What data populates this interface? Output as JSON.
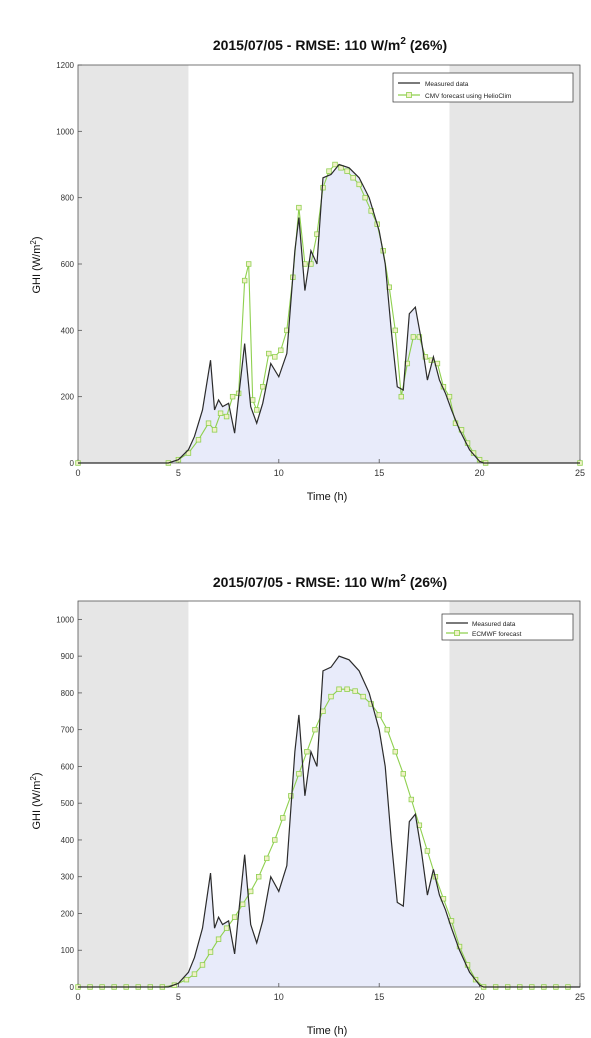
{
  "colors": {
    "measured": "#2b2b2b",
    "forecast": "#8fd04f",
    "night": "#e6e6e6",
    "fill": "#e8ebfa"
  },
  "chart_data": [
    {
      "type": "line",
      "title": "2015/07/05 - RMSE: 110 W/m² (26%)",
      "title_parts": {
        "pre": "2015/07/05 - RMSE: 110 W/m",
        "sup": "2",
        "post": " (26%)"
      },
      "xlabel": "Time (h)",
      "ylabel": {
        "pre": "GHI (W/m",
        "sup": "2",
        "post": ")"
      },
      "xlim": [
        0,
        25
      ],
      "ylim": [
        0,
        1200
      ],
      "xticks": [
        0,
        5,
        10,
        15,
        20,
        25
      ],
      "yticks": [
        0,
        200,
        400,
        600,
        800,
        1000,
        1200
      ],
      "night_shading": [
        [
          0,
          5.5
        ],
        [
          18.5,
          25
        ]
      ],
      "legend_position": "top-right",
      "series": [
        {
          "name": "Measured data",
          "x": [
            0,
            4.5,
            5,
            5.5,
            5.8,
            6.2,
            6.6,
            6.8,
            7.0,
            7.2,
            7.5,
            7.8,
            8.0,
            8.3,
            8.6,
            8.9,
            9.2,
            9.6,
            10.0,
            10.4,
            10.8,
            11.0,
            11.3,
            11.6,
            11.9,
            12.2,
            12.6,
            13.0,
            13.5,
            14.0,
            14.5,
            15.0,
            15.3,
            15.6,
            15.9,
            16.2,
            16.5,
            16.8,
            17.1,
            17.4,
            17.7,
            18.0,
            18.3,
            18.6,
            19.0,
            19.5,
            20.0,
            20.2,
            25
          ],
          "y": [
            0,
            0,
            10,
            40,
            80,
            160,
            310,
            160,
            190,
            170,
            180,
            90,
            200,
            360,
            170,
            120,
            180,
            300,
            260,
            330,
            640,
            740,
            520,
            640,
            600,
            860,
            870,
            900,
            890,
            860,
            800,
            700,
            600,
            400,
            230,
            220,
            450,
            470,
            370,
            250,
            320,
            250,
            210,
            160,
            100,
            40,
            5,
            0,
            0
          ]
        },
        {
          "name": "CMV forecast using HelioClim",
          "x": [
            0,
            4.5,
            5.0,
            5.5,
            6.0,
            6.5,
            6.8,
            7.1,
            7.4,
            7.7,
            8.0,
            8.3,
            8.5,
            8.7,
            8.9,
            9.2,
            9.5,
            9.8,
            10.1,
            10.4,
            10.7,
            11.0,
            11.3,
            11.6,
            11.9,
            12.2,
            12.5,
            12.8,
            13.1,
            13.4,
            13.7,
            14.0,
            14.3,
            14.6,
            14.9,
            15.2,
            15.5,
            15.8,
            16.1,
            16.4,
            16.7,
            17.0,
            17.3,
            17.6,
            17.9,
            18.2,
            18.5,
            18.8,
            19.1,
            19.4,
            19.7,
            20.0,
            20.3,
            25
          ],
          "y": [
            0,
            0,
            10,
            30,
            70,
            120,
            100,
            150,
            140,
            200,
            210,
            550,
            600,
            190,
            160,
            230,
            330,
            320,
            340,
            400,
            560,
            770,
            600,
            600,
            690,
            830,
            880,
            900,
            890,
            880,
            860,
            840,
            800,
            760,
            720,
            640,
            530,
            400,
            200,
            300,
            380,
            380,
            320,
            310,
            300,
            230,
            200,
            120,
            100,
            60,
            30,
            10,
            0,
            0
          ]
        }
      ]
    },
    {
      "type": "line",
      "title": "2015/07/05 - RMSE: 110 W/m² (26%)",
      "title_parts": {
        "pre": "2015/07/05 - RMSE: 110 W/m",
        "sup": "2",
        "post": " (26%)"
      },
      "xlabel": "Time (h)",
      "ylabel": {
        "pre": "GHI (W/m",
        "sup": "2",
        "post": ")"
      },
      "xlim": [
        0,
        25
      ],
      "ylim": [
        0,
        1050
      ],
      "xticks": [
        0,
        5,
        10,
        15,
        20,
        25
      ],
      "yticks": [
        0,
        100,
        200,
        300,
        400,
        500,
        600,
        700,
        800,
        900,
        1000
      ],
      "night_shading": [
        [
          0,
          5.5
        ],
        [
          18.5,
          25
        ]
      ],
      "legend_position": "top-right",
      "series": [
        {
          "name": "Measured data",
          "x": [
            0,
            4.5,
            5,
            5.5,
            5.8,
            6.2,
            6.6,
            6.8,
            7.0,
            7.2,
            7.5,
            7.8,
            8.0,
            8.3,
            8.6,
            8.9,
            9.2,
            9.6,
            10.0,
            10.4,
            10.8,
            11.0,
            11.3,
            11.6,
            11.9,
            12.2,
            12.6,
            13.0,
            13.5,
            14.0,
            14.5,
            15.0,
            15.3,
            15.6,
            15.9,
            16.2,
            16.5,
            16.8,
            17.1,
            17.4,
            17.7,
            18.0,
            18.3,
            18.6,
            19.0,
            19.5,
            20.0,
            20.2,
            25
          ],
          "y": [
            0,
            0,
            10,
            40,
            80,
            160,
            310,
            160,
            190,
            170,
            180,
            90,
            200,
            360,
            170,
            120,
            180,
            300,
            260,
            330,
            640,
            740,
            520,
            640,
            600,
            860,
            870,
            900,
            890,
            860,
            800,
            700,
            600,
            400,
            230,
            220,
            450,
            470,
            370,
            250,
            320,
            250,
            210,
            160,
            100,
            40,
            5,
            0,
            0
          ]
        },
        {
          "name": "ECMWF forecast",
          "x": [
            0,
            0.6,
            1.2,
            1.8,
            2.4,
            3.0,
            3.6,
            4.2,
            4.8,
            5.4,
            5.8,
            6.2,
            6.6,
            7.0,
            7.4,
            7.8,
            8.2,
            8.6,
            9.0,
            9.4,
            9.8,
            10.2,
            10.6,
            11.0,
            11.4,
            11.8,
            12.2,
            12.6,
            13.0,
            13.4,
            13.8,
            14.2,
            14.6,
            15.0,
            15.4,
            15.8,
            16.2,
            16.6,
            17.0,
            17.4,
            17.8,
            18.2,
            18.6,
            19.0,
            19.4,
            19.8,
            20.2,
            20.8,
            21.4,
            22.0,
            22.6,
            23.2,
            23.8,
            24.4
          ],
          "y": [
            0,
            0,
            0,
            0,
            0,
            0,
            0,
            0,
            5,
            20,
            35,
            60,
            95,
            130,
            160,
            190,
            225,
            260,
            300,
            350,
            400,
            460,
            520,
            580,
            640,
            700,
            750,
            790,
            810,
            810,
            805,
            790,
            770,
            740,
            700,
            640,
            580,
            510,
            440,
            370,
            300,
            240,
            180,
            110,
            60,
            20,
            0,
            0,
            0,
            0,
            0,
            0,
            0,
            0
          ]
        }
      ]
    }
  ]
}
